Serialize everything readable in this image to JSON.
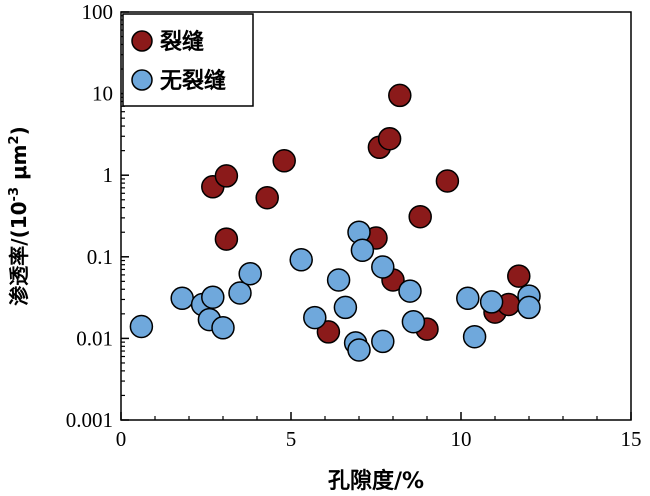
{
  "chart_data": {
    "type": "scatter",
    "xlabel": "孔隙度/%",
    "ylabel": "渗透率/(10",
    "ylabel_exp": "-3",
    "ylabel_unit": " μm",
    "ylabel_unit_exp": "2",
    "ylabel_close": ")",
    "xlim": [
      0,
      15
    ],
    "ylim": [
      0.001,
      100
    ],
    "yscale": "log",
    "x_ticks": [
      0,
      5,
      10,
      15
    ],
    "x_tick_labels": [
      "0",
      "5",
      "10",
      "15"
    ],
    "y_ticks": [
      0.001,
      0.01,
      0.1,
      1,
      10,
      100
    ],
    "y_tick_labels": [
      "0.001",
      "0.01",
      "0.1",
      "1",
      "10",
      "100"
    ],
    "legend": {
      "position": "top-left",
      "box": true
    },
    "series": [
      {
        "name": "裂缝",
        "color": "#8b1a1a",
        "points": [
          [
            2.7,
            0.72
          ],
          [
            3.1,
            0.98
          ],
          [
            3.1,
            0.165
          ],
          [
            4.3,
            0.53
          ],
          [
            4.8,
            1.5
          ],
          [
            6.1,
            0.012
          ],
          [
            7.5,
            0.17
          ],
          [
            7.6,
            2.2
          ],
          [
            7.9,
            2.8
          ],
          [
            8.0,
            0.052
          ],
          [
            8.2,
            9.5
          ],
          [
            8.8,
            0.31
          ],
          [
            9.0,
            0.013
          ],
          [
            9.6,
            0.85
          ],
          [
            11.0,
            0.021
          ],
          [
            11.4,
            0.026
          ],
          [
            11.7,
            0.058
          ]
        ]
      },
      {
        "name": "无裂缝",
        "color": "#6fa8dc",
        "points": [
          [
            0.6,
            0.014
          ],
          [
            1.8,
            0.031
          ],
          [
            2.4,
            0.026
          ],
          [
            2.6,
            0.017
          ],
          [
            2.7,
            0.032
          ],
          [
            3.0,
            0.0135
          ],
          [
            3.5,
            0.036
          ],
          [
            3.8,
            0.062
          ],
          [
            5.3,
            0.092
          ],
          [
            5.7,
            0.018
          ],
          [
            6.4,
            0.052
          ],
          [
            6.6,
            0.024
          ],
          [
            6.9,
            0.0088
          ],
          [
            7.0,
            0.0072
          ],
          [
            7.0,
            0.2
          ],
          [
            7.1,
            0.12
          ],
          [
            7.7,
            0.0092
          ],
          [
            7.7,
            0.075
          ],
          [
            8.5,
            0.038
          ],
          [
            8.6,
            0.016
          ],
          [
            10.2,
            0.031
          ],
          [
            10.4,
            0.0105
          ],
          [
            10.9,
            0.028
          ],
          [
            12.0,
            0.033
          ],
          [
            12.0,
            0.024
          ]
        ]
      }
    ]
  }
}
